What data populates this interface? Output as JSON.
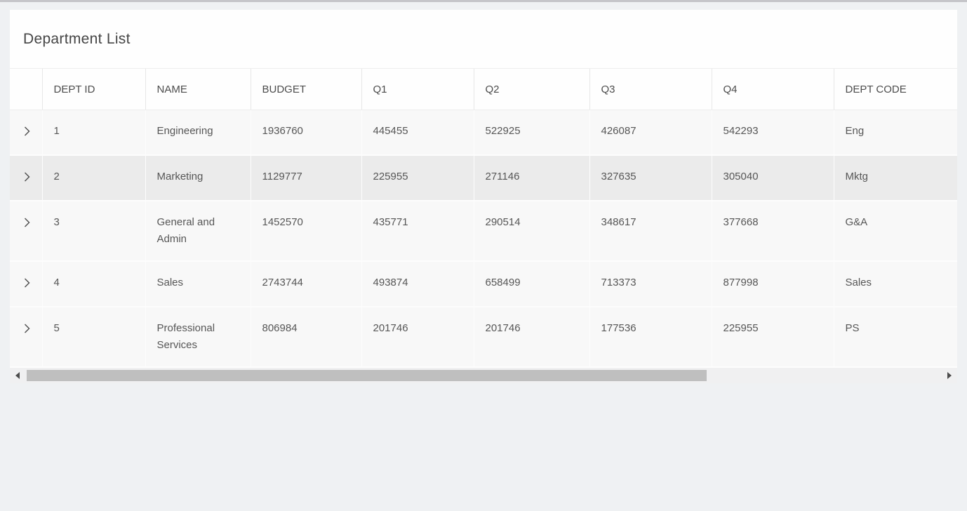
{
  "panel": {
    "title": "Department List"
  },
  "table": {
    "columns": [
      {
        "key": "expander",
        "label": ""
      },
      {
        "key": "dept_id",
        "label": "DEPT ID"
      },
      {
        "key": "name",
        "label": "NAME"
      },
      {
        "key": "budget",
        "label": "BUDGET"
      },
      {
        "key": "q1",
        "label": "Q1"
      },
      {
        "key": "q2",
        "label": "Q2"
      },
      {
        "key": "q3",
        "label": "Q3"
      },
      {
        "key": "q4",
        "label": "Q4"
      },
      {
        "key": "dept_code",
        "label": "DEPT CODE"
      }
    ],
    "expander_icon": "chevron-right-icon",
    "rows": [
      {
        "dept_id": "1",
        "name": "Engineering",
        "budget": "1936760",
        "q1": "445455",
        "q2": "522925",
        "q3": "426087",
        "q4": "542293",
        "dept_code": "Eng",
        "selected": false
      },
      {
        "dept_id": "2",
        "name": "Marketing",
        "budget": "1129777",
        "q1": "225955",
        "q2": "271146",
        "q3": "327635",
        "q4": "305040",
        "dept_code": "Mktg",
        "selected": true
      },
      {
        "dept_id": "3",
        "name": "General and Admin",
        "budget": "1452570",
        "q1": "435771",
        "q2": "290514",
        "q3": "348617",
        "q4": "377668",
        "dept_code": "G&A",
        "selected": false
      },
      {
        "dept_id": "4",
        "name": "Sales",
        "budget": "2743744",
        "q1": "493874",
        "q2": "658499",
        "q3": "713373",
        "q4": "877998",
        "dept_code": "Sales",
        "selected": false
      },
      {
        "dept_id": "5",
        "name": "Professional Services",
        "budget": "806984",
        "q1": "201746",
        "q2": "201746",
        "q3": "177536",
        "q4": "225955",
        "dept_code": "PS",
        "selected": false
      }
    ]
  },
  "scrollbar": {
    "orientation": "horizontal",
    "left_icon": "scroll-left-icon",
    "right_icon": "scroll-right-icon"
  },
  "colors": {
    "selected_row_bg": "#ebebeb",
    "row_bg": "#f8f8f8",
    "header_bg": "#fefefe",
    "page_bg": "#eff1f3",
    "scrollbar_thumb": "#bfbfbf",
    "text": "#565656"
  }
}
